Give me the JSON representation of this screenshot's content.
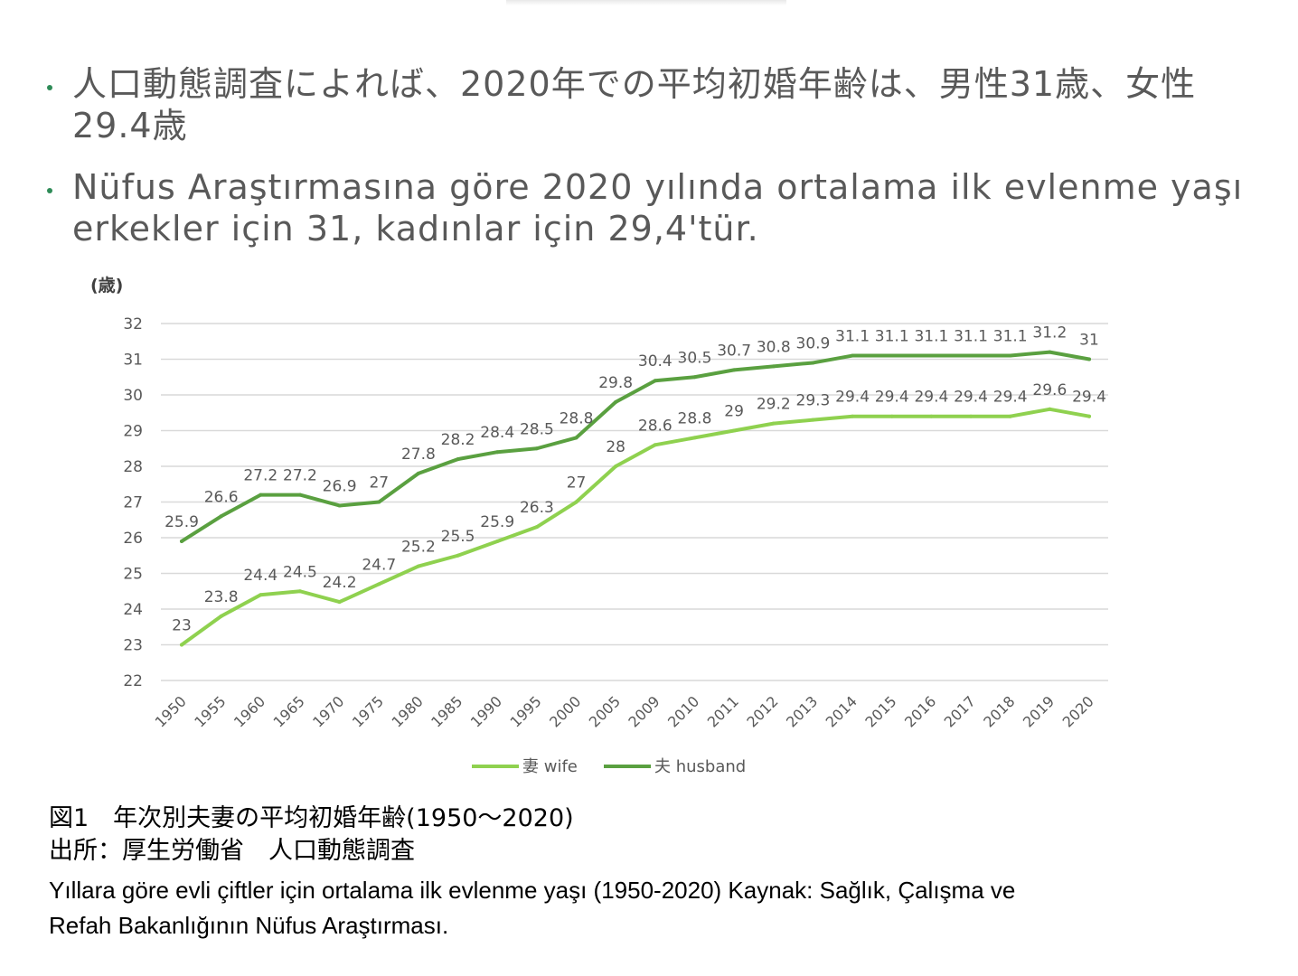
{
  "bullets": [
    "人口動態調査によれば、2020年での平均初婚年齢は、男性31歳、女性29.4歳",
    "Nüfus Araştırmasına göre 2020 yılında ortalama ilk evlenme yaşı erkekler için 31, kadınlar için 29,4'tür."
  ],
  "caption": {
    "line1": "図1　年次別夫妻の平均初婚年齢(1950～2020)",
    "line2": "出所：厚生労働省　人口動態調査",
    "line3": " Yıllara göre evli çiftler için ortalama ilk evlenme yaşı (1950-2020) Kaynak: Sağlık, Çalışma ve",
    "line4": "Refah Bakanlığının Nüfus Araştırması."
  },
  "colors": {
    "wife": "#8fd14f",
    "husband": "#5aa040",
    "bullet": "#2e8b57",
    "text": "#595959",
    "grid": "#d9d9d9"
  },
  "chart_data": {
    "type": "line",
    "y_unit": "(歳)",
    "ylim": [
      22,
      32
    ],
    "yticks": [
      22,
      23,
      24,
      25,
      26,
      27,
      28,
      29,
      30,
      31,
      32
    ],
    "grid": true,
    "legend_position": "bottom",
    "categories": [
      "1950",
      "1955",
      "1960",
      "1965",
      "1970",
      "1975",
      "1980",
      "1985",
      "1990",
      "1995",
      "2000",
      "2005",
      "2009",
      "2010",
      "2011",
      "2012",
      "2013",
      "2014",
      "2015",
      "2016",
      "2017",
      "2018",
      "2019",
      "2020"
    ],
    "series": [
      {
        "name": "妻 wife",
        "color": "#8fd14f",
        "values": [
          23,
          23.8,
          24.4,
          24.5,
          24.2,
          24.7,
          25.2,
          25.5,
          25.9,
          26.3,
          27,
          28,
          28.6,
          28.8,
          29,
          29.2,
          29.3,
          29.4,
          29.4,
          29.4,
          29.4,
          29.4,
          29.6,
          29.4
        ]
      },
      {
        "name": "夫 husband",
        "color": "#5aa040",
        "values": [
          25.9,
          26.6,
          27.2,
          27.2,
          26.9,
          27,
          27.8,
          28.2,
          28.4,
          28.5,
          28.8,
          29.8,
          30.4,
          30.5,
          30.7,
          30.8,
          30.9,
          31.1,
          31.1,
          31.1,
          31.1,
          31.1,
          31.2,
          31
        ]
      }
    ]
  }
}
